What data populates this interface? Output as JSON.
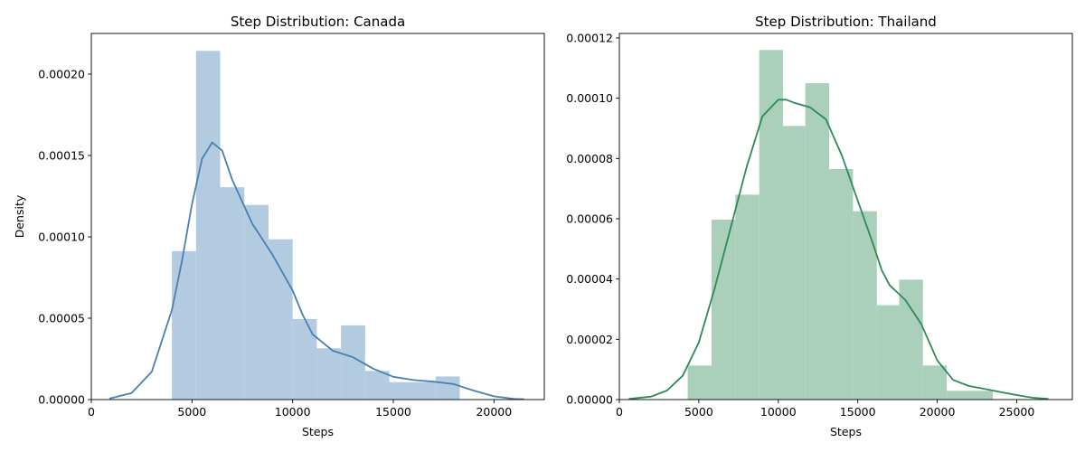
{
  "chart_data": [
    {
      "type": "histogram",
      "title": "Step Distribution: Canada",
      "xlabel": "Steps",
      "ylabel": "Density",
      "xlim": [
        0,
        22500
      ],
      "ylim": [
        0,
        0.000225
      ],
      "xticks": [
        0,
        5000,
        10000,
        15000,
        20000
      ],
      "xtick_labels": [
        "0",
        "5000",
        "10000",
        "15000",
        "20000"
      ],
      "yticks": [
        0,
        5e-05,
        0.0001,
        0.00015,
        0.0002
      ],
      "ytick_labels": [
        "0.00000",
        "0.00005",
        "0.00010",
        "0.00015",
        "0.00020"
      ],
      "grid": false,
      "bar_color": "#b3cbe0",
      "line_color": "#4a80b0",
      "bins": [
        {
          "x0": 4000,
          "x1": 5200,
          "density": 9.12e-05
        },
        {
          "x0": 5200,
          "x1": 6400,
          "density": 0.0002143
        },
        {
          "x0": 6400,
          "x1": 7600,
          "density": 0.0001305
        },
        {
          "x0": 7600,
          "x1": 8800,
          "density": 0.0001196
        },
        {
          "x0": 8800,
          "x1": 10000,
          "density": 9.85e-05
        },
        {
          "x0": 10000,
          "x1": 11200,
          "density": 4.95e-05
        },
        {
          "x0": 11200,
          "x1": 12400,
          "density": 3.15e-05
        },
        {
          "x0": 12400,
          "x1": 13600,
          "density": 4.56e-05
        },
        {
          "x0": 13600,
          "x1": 14800,
          "density": 1.76e-05
        },
        {
          "x0": 14800,
          "x1": 17100,
          "density": 1.07e-05
        },
        {
          "x0": 17100,
          "x1": 18300,
          "density": 1.42e-05
        }
      ],
      "kde": {
        "x": [
          900,
          2000,
          3000,
          4000,
          4500,
          5000,
          5500,
          6000,
          6500,
          7000,
          8000,
          9000,
          10000,
          10500,
          11000,
          12000,
          13000,
          14000,
          15000,
          16000,
          17000,
          18000,
          19000,
          20000,
          21000,
          21500
        ],
        "y": [
          6e-07,
          4e-06,
          1.7e-05,
          5.5e-05,
          8.5e-05,
          0.00012,
          0.000148,
          0.000158,
          0.000153,
          0.000135,
          0.000108,
          8.9e-05,
          6.7e-05,
          5.2e-05,
          4e-05,
          3e-05,
          2.6e-05,
          1.9e-05,
          1.4e-05,
          1.2e-05,
          1.1e-05,
          9.5e-06,
          5.5e-06,
          2e-06,
          4e-07,
          2e-07
        ]
      }
    },
    {
      "type": "histogram",
      "title": "Step Distribution: Thailand",
      "xlabel": "Steps",
      "ylabel": "",
      "xlim": [
        0,
        28500
      ],
      "ylim": [
        0,
        0.0001215
      ],
      "xticks": [
        0,
        5000,
        10000,
        15000,
        20000,
        25000
      ],
      "xtick_labels": [
        "0",
        "5000",
        "10000",
        "15000",
        "20000",
        "25000"
      ],
      "yticks": [
        0,
        2e-05,
        4e-05,
        6e-05,
        8e-05,
        0.0001,
        0.00012
      ],
      "ytick_labels": [
        "0.00000",
        "0.00002",
        "0.00004",
        "0.00006",
        "0.00008",
        "0.00010",
        "0.00012"
      ],
      "grid": false,
      "bar_color": "#aacfba",
      "line_color": "#2e8a57",
      "bins": [
        {
          "x0": 4300,
          "x1": 5800,
          "density": 1.13e-05
        },
        {
          "x0": 5800,
          "x1": 7300,
          "density": 5.97e-05
        },
        {
          "x0": 7300,
          "x1": 8800,
          "density": 6.8e-05
        },
        {
          "x0": 8800,
          "x1": 10300,
          "density": 0.000116
        },
        {
          "x0": 10300,
          "x1": 11700,
          "density": 9.08e-05
        },
        {
          "x0": 11700,
          "x1": 13200,
          "density": 0.000105
        },
        {
          "x0": 13200,
          "x1": 14700,
          "density": 7.65e-05
        },
        {
          "x0": 14700,
          "x1": 16200,
          "density": 6.25e-05
        },
        {
          "x0": 16200,
          "x1": 17600,
          "density": 3.13e-05
        },
        {
          "x0": 17600,
          "x1": 19100,
          "density": 3.98e-05
        },
        {
          "x0": 19100,
          "x1": 20600,
          "density": 1.13e-05
        },
        {
          "x0": 20600,
          "x1": 23500,
          "density": 2.9e-06
        }
      ],
      "kde": {
        "x": [
          600,
          2000,
          3000,
          4000,
          5000,
          6000,
          7000,
          8000,
          9000,
          10000,
          10500,
          11000,
          12000,
          13000,
          14000,
          15000,
          16000,
          16500,
          17000,
          18000,
          19000,
          20000,
          21000,
          22000,
          23000,
          24000,
          25000,
          26000,
          27000
        ],
        "y": [
          2e-07,
          1e-06,
          3e-06,
          8e-06,
          1.9e-05,
          3.7e-05,
          5.7e-05,
          7.7e-05,
          9.4e-05,
          9.95e-05,
          9.95e-05,
          9.85e-05,
          9.7e-05,
          9.3e-05,
          8.1e-05,
          6.6e-05,
          5.1e-05,
          4.3e-05,
          3.8e-05,
          3.3e-05,
          2.5e-05,
          1.3e-05,
          6.5e-06,
          4.5e-06,
          3.5e-06,
          2.5e-06,
          1.5e-06,
          6e-07,
          2e-07
        ]
      }
    }
  ]
}
